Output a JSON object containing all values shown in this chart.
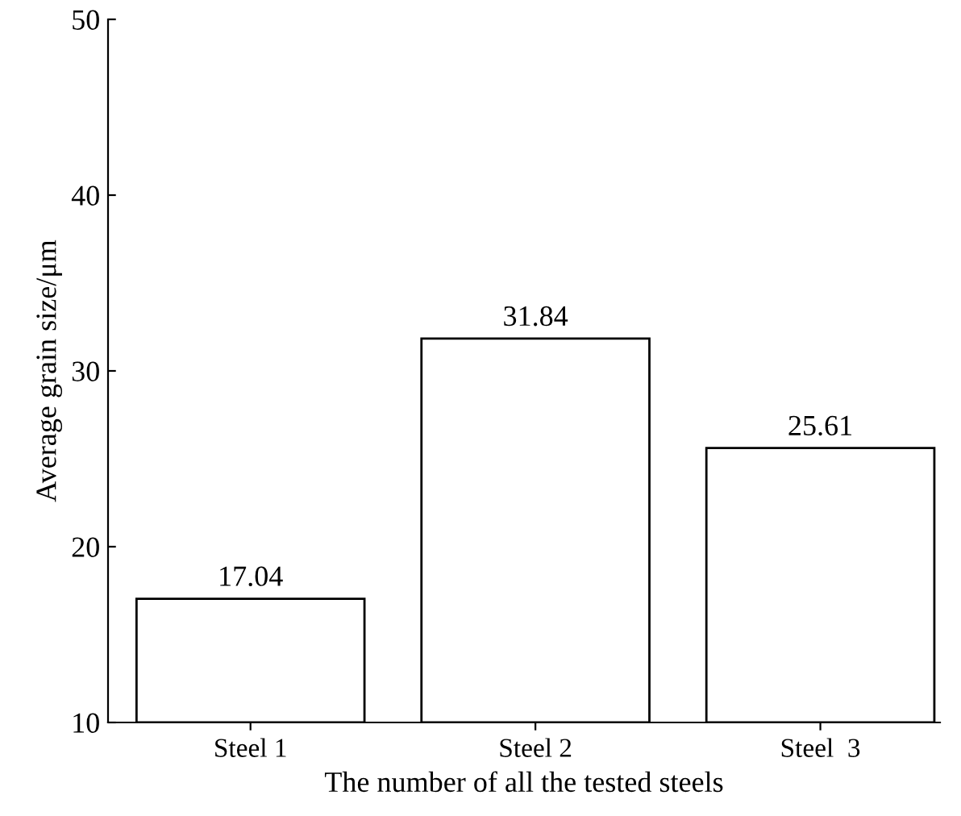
{
  "chart_data": {
    "type": "bar",
    "xlabel": "The number of all the tested steels",
    "ylabel": "Average grain size/μm",
    "categories": [
      "Steel 1",
      "Steel 2",
      "Steel  3"
    ],
    "values": [
      17.04,
      31.84,
      25.61
    ],
    "color": "#ffffff",
    "data_labels": true,
    "ylim": [
      10,
      50
    ],
    "yticks": [
      10,
      20,
      30,
      40,
      50
    ],
    "grid": false
  }
}
